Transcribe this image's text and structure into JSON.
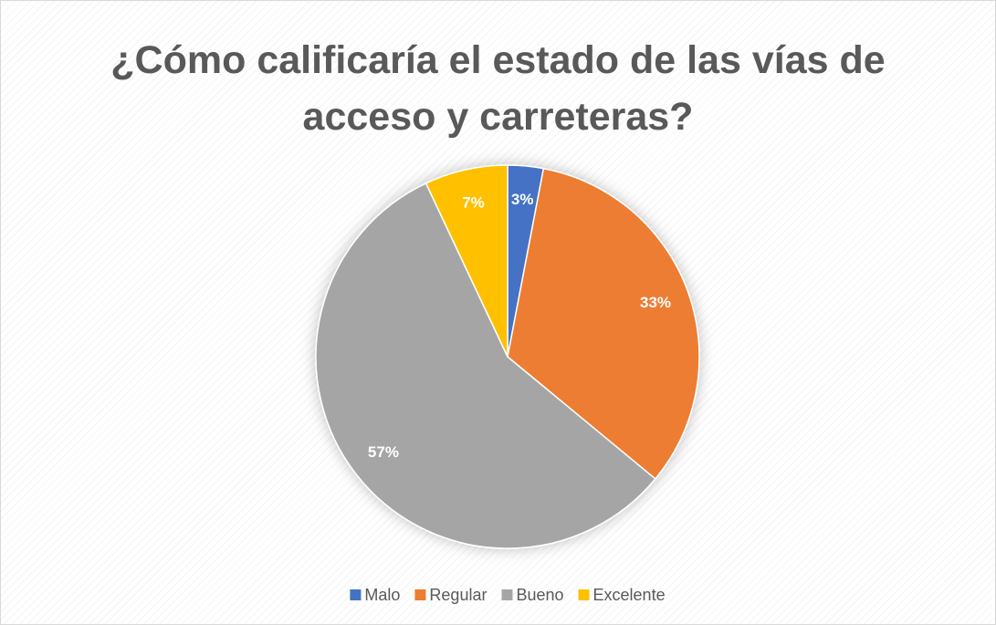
{
  "chart_data": {
    "type": "pie",
    "title": "¿Cómo calificaría el estado de las vías de acceso y carreteras?",
    "categories": [
      "Malo",
      "Regular",
      "Bueno",
      "Excelente"
    ],
    "values": [
      3,
      33,
      57,
      7
    ],
    "value_labels": [
      "3%",
      "33%",
      "57%",
      "7%"
    ],
    "colors": [
      "#4472c4",
      "#ed7d31",
      "#a5a5a5",
      "#ffc000"
    ],
    "legend": "bottom"
  }
}
